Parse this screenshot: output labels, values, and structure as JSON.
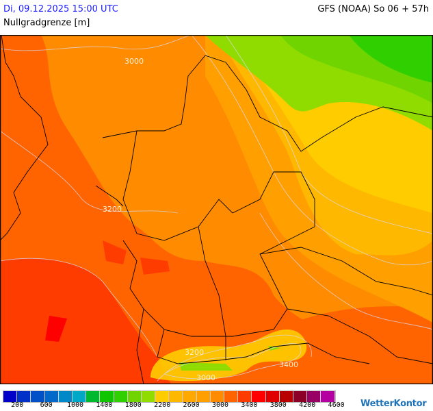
{
  "header": {
    "datetime": "Di, 09.12.2025 15:00 UTC",
    "model_run": "GFS (NOAA) So 06 + 57h",
    "parameter": "Nullgradgrenze [m]"
  },
  "map": {
    "contour_labels": [
      "3000",
      "3200",
      "3200",
      "3000",
      "3400"
    ]
  },
  "legend": {
    "colors": [
      "#0000c8",
      "#0030c8",
      "#0050c8",
      "#0068c8",
      "#0088c8",
      "#00a8c8",
      "#00b830",
      "#10c400",
      "#30d000",
      "#70d400",
      "#90dc00",
      "#ffcc00",
      "#ffb800",
      "#ffa800",
      "#ffa000",
      "#ff8c00",
      "#ff6400",
      "#ff3c00",
      "#ff0000",
      "#e00000",
      "#b80000",
      "#8c0028",
      "#980064",
      "#b400a0"
    ],
    "labels": [
      "200",
      "600",
      "1000",
      "1400",
      "1800",
      "2200",
      "2600",
      "3000",
      "3400",
      "3800",
      "4200",
      "4600"
    ]
  },
  "logo": {
    "text": "WetterKontor"
  }
}
